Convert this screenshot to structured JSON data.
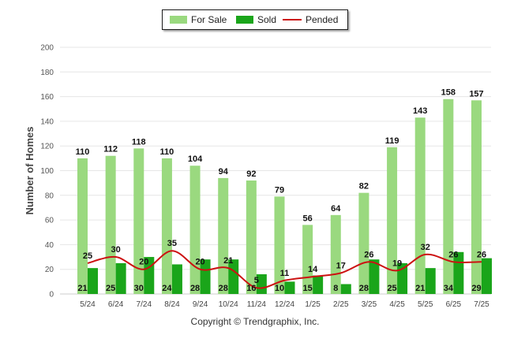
{
  "chart_data": {
    "type": "bar",
    "title": "",
    "xlabel": "",
    "ylabel": "Number of Homes",
    "ylim": [
      0,
      200
    ],
    "yticks": [
      0,
      20,
      40,
      60,
      80,
      100,
      120,
      140,
      160,
      180,
      200
    ],
    "grid": true,
    "legend_position": "top-center",
    "categories": [
      "5/24",
      "6/24",
      "7/24",
      "8/24",
      "9/24",
      "10/24",
      "11/24",
      "12/24",
      "1/25",
      "2/25",
      "3/25",
      "4/25",
      "5/25",
      "6/25",
      "7/25"
    ],
    "series": [
      {
        "name": "For Sale",
        "kind": "bar",
        "color": "#9ad97f",
        "values": [
          110,
          112,
          118,
          110,
          104,
          94,
          92,
          79,
          56,
          64,
          82,
          119,
          143,
          158,
          157
        ]
      },
      {
        "name": "Sold",
        "kind": "bar",
        "color": "#1aa51a",
        "values": [
          21,
          25,
          30,
          24,
          28,
          28,
          16,
          10,
          15,
          8,
          28,
          25,
          21,
          34,
          29
        ]
      },
      {
        "name": "Pended",
        "kind": "line",
        "color": "#cc1111",
        "values": [
          25,
          30,
          20,
          35,
          20,
          21,
          5,
          11,
          14,
          17,
          26,
          19,
          32,
          26,
          26
        ]
      }
    ]
  },
  "footer": {
    "copyright": "Copyright © Trendgraphix, Inc."
  }
}
